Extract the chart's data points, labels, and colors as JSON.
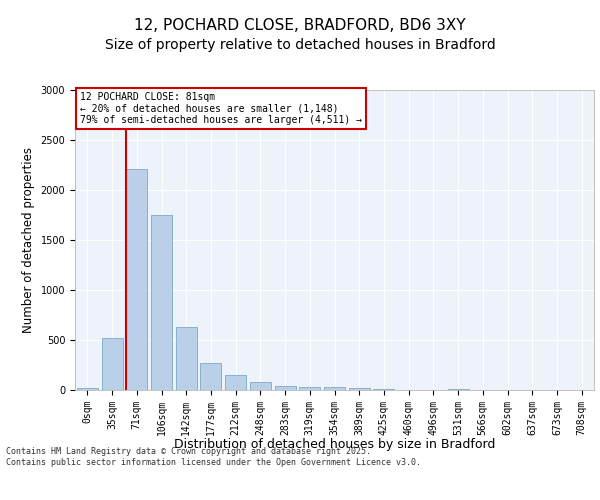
{
  "title1": "12, POCHARD CLOSE, BRADFORD, BD6 3XY",
  "title2": "Size of property relative to detached houses in Bradford",
  "xlabel": "Distribution of detached houses by size in Bradford",
  "ylabel": "Number of detached properties",
  "categories": [
    "0sqm",
    "35sqm",
    "71sqm",
    "106sqm",
    "142sqm",
    "177sqm",
    "212sqm",
    "248sqm",
    "283sqm",
    "319sqm",
    "354sqm",
    "389sqm",
    "425sqm",
    "460sqm",
    "496sqm",
    "531sqm",
    "566sqm",
    "602sqm",
    "637sqm",
    "673sqm",
    "708sqm"
  ],
  "values": [
    20,
    520,
    2210,
    1750,
    635,
    270,
    155,
    85,
    45,
    35,
    30,
    25,
    10,
    5,
    5,
    15,
    5,
    5,
    5,
    5,
    5
  ],
  "bar_color": "#bad0e8",
  "bar_edge_color": "#6a9ec0",
  "ylim": [
    0,
    3000
  ],
  "yticks": [
    0,
    500,
    1000,
    1500,
    2000,
    2500,
    3000
  ],
  "vline_bar_index": 2,
  "vline_color": "#cc0000",
  "annotation_text": "12 POCHARD CLOSE: 81sqm\n← 20% of detached houses are smaller (1,148)\n79% of semi-detached houses are larger (4,511) →",
  "annotation_box_edgecolor": "#cc0000",
  "footer": "Contains HM Land Registry data © Crown copyright and database right 2025.\nContains public sector information licensed under the Open Government Licence v3.0.",
  "bg_color": "#eef2fa",
  "grid_color": "#ffffff",
  "title_fontsize": 11,
  "subtitle_fontsize": 10,
  "tick_fontsize": 7,
  "ylabel_fontsize": 8.5,
  "xlabel_fontsize": 9,
  "annot_fontsize": 7,
  "footer_fontsize": 6
}
